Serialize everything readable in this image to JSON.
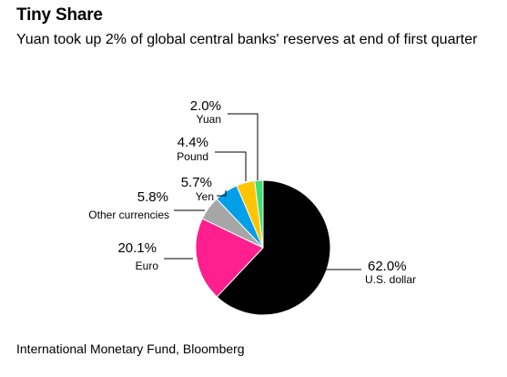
{
  "header": {
    "title": "Tiny Share",
    "subtitle": "Yuan took up 2% of global central banks' reserves at end of first quarter"
  },
  "source": "International Monetary Fund, Bloomberg",
  "chart_data": {
    "type": "pie",
    "title": "Tiny Share",
    "subtitle": "Yuan took up 2% of global central banks' reserves at end of first quarter",
    "slices": [
      {
        "label": "U.S. dollar",
        "value": 62.0,
        "display": "62.0%",
        "color": "#000000"
      },
      {
        "label": "Euro",
        "value": 20.1,
        "display": "20.1%",
        "color": "#ff1f8e"
      },
      {
        "label": "Other currencies",
        "value": 5.8,
        "display": "5.8%",
        "color": "#a6a6a6"
      },
      {
        "label": "Yen",
        "value": 5.7,
        "display": "5.7%",
        "color": "#009fe8"
      },
      {
        "label": "Pound",
        "value": 4.4,
        "display": "4.4%",
        "color": "#ffc300"
      },
      {
        "label": "Yuan",
        "value": 2.0,
        "display": "2.0%",
        "color": "#40e070"
      }
    ]
  }
}
